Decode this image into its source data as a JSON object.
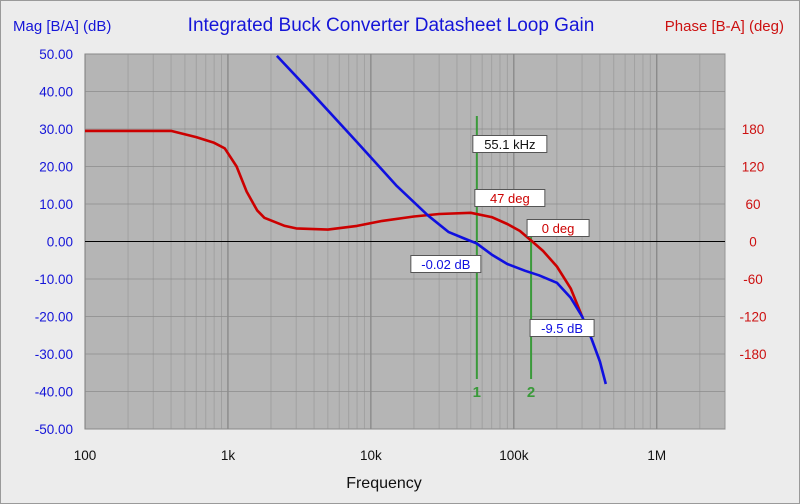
{
  "chart_data": {
    "type": "line",
    "title": "Integrated Buck Converter Datasheet Loop Gain",
    "xlabel": "Frequency",
    "ylabel_left": "Mag [B/A] (dB)",
    "ylabel_right": "Phase [B-A] (deg)",
    "x_scale": "log",
    "xlim": [
      100,
      3000000
    ],
    "x_ticks": [
      {
        "value": 100,
        "label": "100"
      },
      {
        "value": 1000,
        "label": "1k"
      },
      {
        "value": 10000,
        "label": "10k"
      },
      {
        "value": 100000,
        "label": "100k"
      },
      {
        "value": 1000000,
        "label": "1M"
      }
    ],
    "ylim_left": [
      -50,
      50
    ],
    "y_ticks_left": [
      {
        "value": 50,
        "label": "50.00"
      },
      {
        "value": 40,
        "label": "40.00"
      },
      {
        "value": 30,
        "label": "30.00"
      },
      {
        "value": 20,
        "label": "20.00"
      },
      {
        "value": 10,
        "label": "10.00"
      },
      {
        "value": 0,
        "label": "0.00"
      },
      {
        "value": -10,
        "label": "-10.00"
      },
      {
        "value": -20,
        "label": "-20.00"
      },
      {
        "value": -30,
        "label": "-30.00"
      },
      {
        "value": -40,
        "label": "-40.00"
      },
      {
        "value": -50,
        "label": "-50.00"
      }
    ],
    "ylim_right": [
      -300,
      300
    ],
    "y_ticks_right": [
      {
        "value": 180,
        "label": "180"
      },
      {
        "value": 120,
        "label": "120"
      },
      {
        "value": 60,
        "label": "60"
      },
      {
        "value": 0,
        "label": "0"
      },
      {
        "value": -60,
        "label": "-60"
      },
      {
        "value": -120,
        "label": "-120"
      },
      {
        "value": -180,
        "label": "-180"
      }
    ],
    "grid": true,
    "series": [
      {
        "axis": "left",
        "color": "#1010e0",
        "points": [
          [
            2200,
            49.5
          ],
          [
            4000,
            39
          ],
          [
            8000,
            26.5
          ],
          [
            15000,
            15
          ],
          [
            25000,
            7
          ],
          [
            35000,
            2.5
          ],
          [
            45000,
            0.8
          ],
          [
            55000,
            -0.5
          ],
          [
            70000,
            -3.5
          ],
          [
            90000,
            -6
          ],
          [
            120000,
            -7.8
          ],
          [
            150000,
            -9
          ],
          [
            200000,
            -11
          ],
          [
            250000,
            -15
          ],
          [
            300000,
            -20
          ],
          [
            350000,
            -26
          ],
          [
            400000,
            -32
          ],
          [
            440000,
            -38
          ]
        ]
      },
      {
        "axis": "right",
        "color": "#cc0000",
        "points": [
          [
            100,
            177
          ],
          [
            400,
            177
          ],
          [
            600,
            167
          ],
          [
            800,
            158
          ],
          [
            950,
            149
          ],
          [
            1150,
            120
          ],
          [
            1350,
            80
          ],
          [
            1600,
            50
          ],
          [
            1800,
            38
          ],
          [
            2500,
            25
          ],
          [
            3000,
            21
          ],
          [
            5000,
            19
          ],
          [
            8000,
            25
          ],
          [
            12000,
            33
          ],
          [
            20000,
            40
          ],
          [
            30000,
            44
          ],
          [
            50000,
            46
          ],
          [
            70000,
            39
          ],
          [
            90000,
            28
          ],
          [
            110000,
            17
          ],
          [
            130000,
            3
          ],
          [
            160000,
            -15
          ],
          [
            200000,
            -40
          ],
          [
            250000,
            -75
          ],
          [
            300000,
            -120
          ]
        ]
      }
    ],
    "cursors": [
      {
        "id": "1",
        "frequency": 55100,
        "label": "1",
        "freq_label": "55.1 kHz",
        "mag_label": "-0.02 dB",
        "phase_label": "47 deg"
      },
      {
        "id": "2",
        "frequency": 132000,
        "label": "2",
        "mag_label": "-9.5 dB",
        "phase_label": "0 deg"
      }
    ],
    "colors": {
      "plot_bg": "#b5b5b5",
      "mag": "#1010e0",
      "phase": "#cc0000",
      "cursor": "#3a9a3a"
    }
  }
}
